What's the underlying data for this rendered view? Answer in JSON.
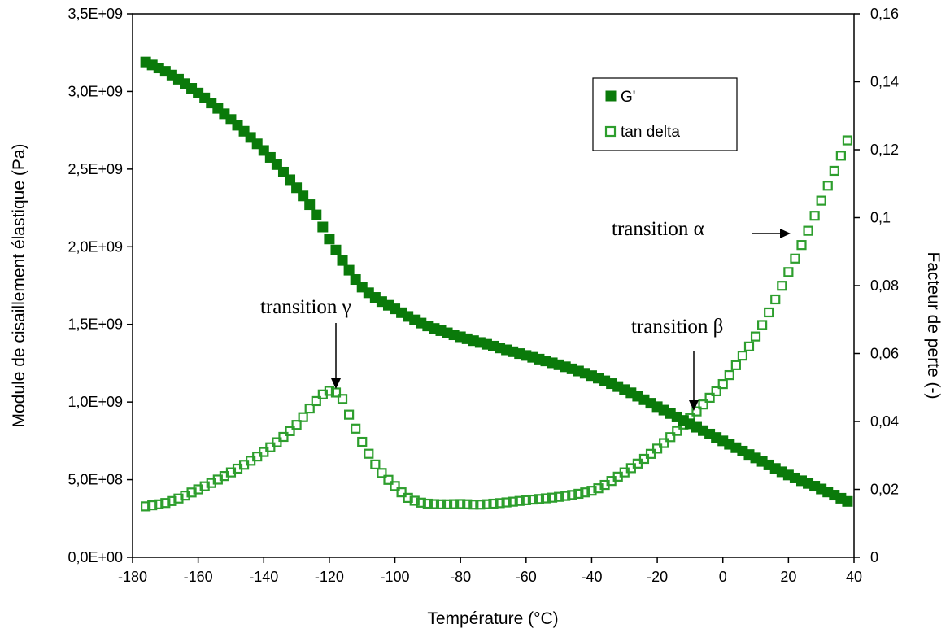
{
  "chart_data": {
    "type": "scatter",
    "title": "",
    "xlabel": "Température (°C)",
    "ylabel": "Module de cisaillement élastique (Pa)",
    "y2label": "Facteur de perte (-)",
    "xlim": [
      -180,
      40
    ],
    "ylim": [
      0,
      3500000000
    ],
    "y2lim": [
      0,
      0.16
    ],
    "x_ticks": [
      "-180",
      "-160",
      "-140",
      "-120",
      "-100",
      "-80",
      "-60",
      "-40",
      "-20",
      "0",
      "20",
      "40"
    ],
    "y_ticks": [
      "0,0E+00",
      "5,0E+08",
      "1,0E+09",
      "1,5E+09",
      "2,0E+09",
      "2,5E+09",
      "3,0E+09",
      "3,5E+09"
    ],
    "y2_ticks": [
      "0",
      "0,02",
      "0,04",
      "0,06",
      "0,08",
      "0,1",
      "0,12",
      "0,14",
      "0,16"
    ],
    "grid": false,
    "legend_position": "top-right",
    "series": [
      {
        "name": "G'",
        "axis": "left",
        "marker": "filled-square",
        "color": "#0a7a0a",
        "x_start": -176,
        "x_end": 39,
        "x_step": 2,
        "x_knots": [
          -176,
          -170,
          -160,
          -150,
          -140,
          -130,
          -125,
          -120,
          -115,
          -110,
          -105,
          -100,
          -95,
          -90,
          -80,
          -70,
          -60,
          -50,
          -40,
          -30,
          -20,
          -10,
          0,
          10,
          20,
          30,
          39
        ],
        "y_knots": [
          3190000000,
          3130000000,
          2990000000,
          2820000000,
          2620000000,
          2380000000,
          2240000000,
          2050000000,
          1880000000,
          1740000000,
          1660000000,
          1600000000,
          1540000000,
          1490000000,
          1420000000,
          1360000000,
          1300000000,
          1240000000,
          1170000000,
          1080000000,
          970000000,
          860000000,
          750000000,
          640000000,
          530000000,
          440000000,
          350000000
        ]
      },
      {
        "name": "tan delta",
        "axis": "right",
        "marker": "open-square",
        "color": "#2d9e2d",
        "x_start": -176,
        "x_end": 39,
        "x_step": 2,
        "x_knots": [
          -176,
          -170,
          -160,
          -150,
          -140,
          -130,
          -124,
          -120,
          -117,
          -114,
          -110,
          -105,
          -100,
          -95,
          -90,
          -85,
          -80,
          -75,
          -70,
          -60,
          -50,
          -40,
          -30,
          -20,
          -10,
          -5,
          0,
          5,
          10,
          15,
          20,
          25,
          30,
          35,
          39
        ],
        "y_knots": [
          0.015,
          0.016,
          0.02,
          0.025,
          0.031,
          0.039,
          0.046,
          0.049,
          0.048,
          0.042,
          0.034,
          0.026,
          0.021,
          0.017,
          0.0158,
          0.0156,
          0.0157,
          0.0155,
          0.0158,
          0.0168,
          0.0178,
          0.0196,
          0.025,
          0.032,
          0.041,
          0.046,
          0.051,
          0.058,
          0.065,
          0.074,
          0.084,
          0.094,
          0.105,
          0.116,
          0.125
        ]
      }
    ],
    "annotations": [
      {
        "text": "transition γ",
        "points_to": [
          -120,
          0.049
        ]
      },
      {
        "text": "transition β",
        "points_to": [
          -9,
          0.041
        ]
      },
      {
        "text": "transition α",
        "points_to": [
          27,
          0.094
        ]
      }
    ]
  }
}
